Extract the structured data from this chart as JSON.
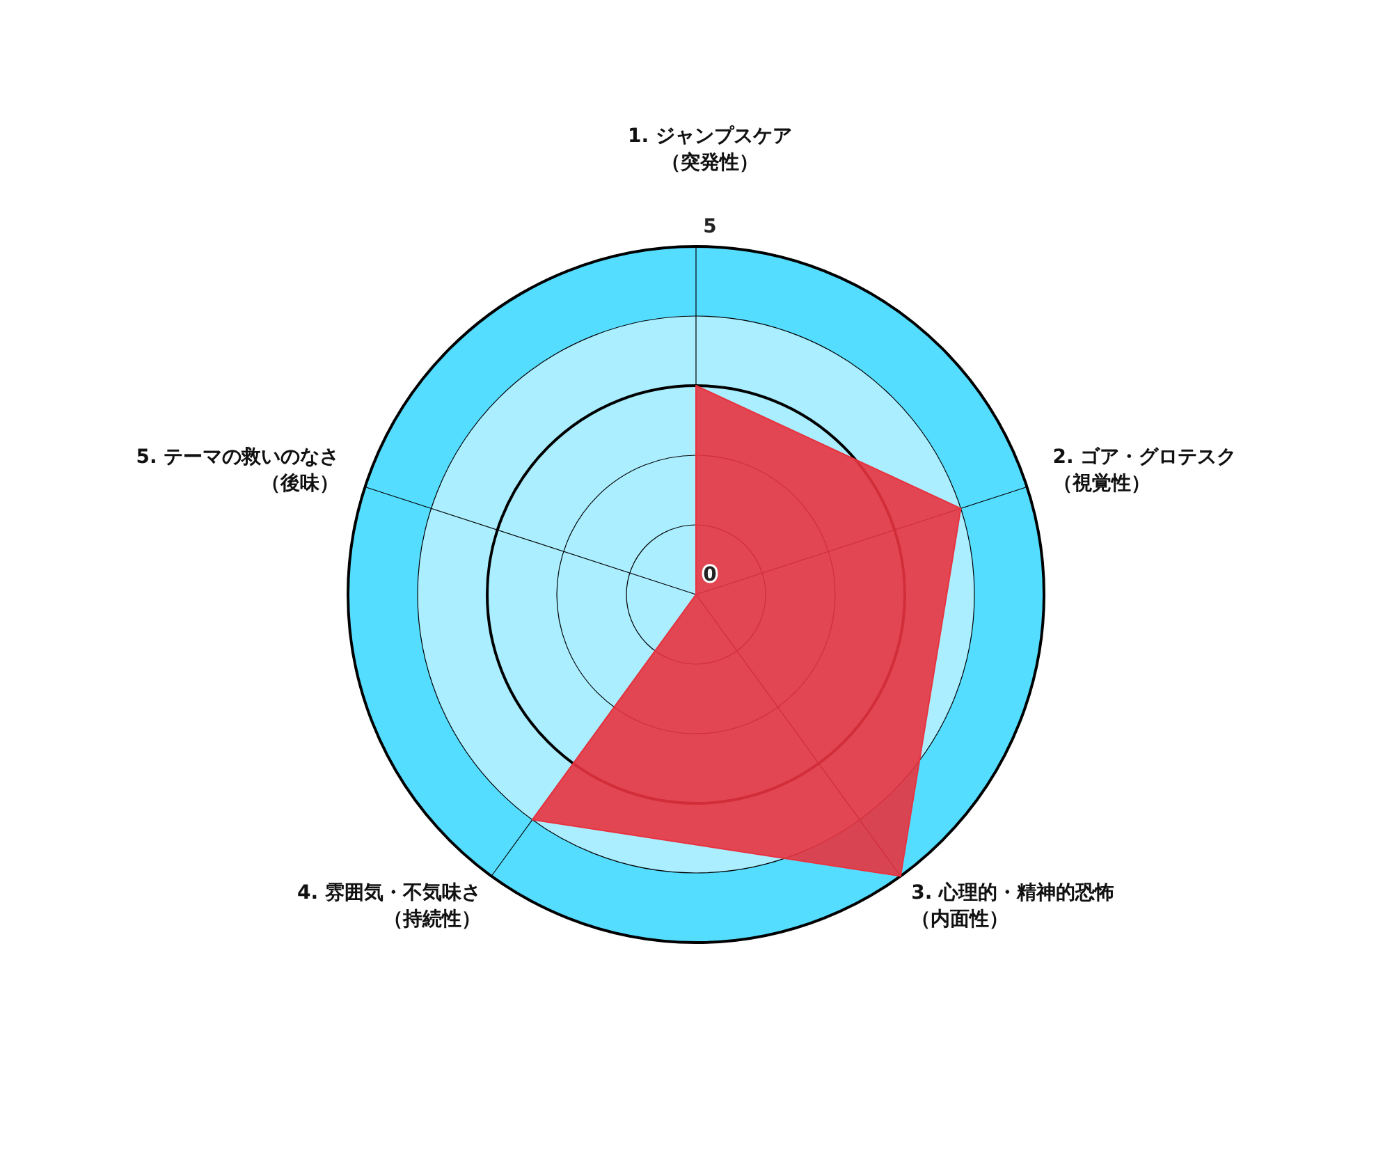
{
  "chart_data": {
    "type": "radar",
    "categories": [
      "1. ジャンプスケア（突発性）",
      "2. ゴア・グロテスク（視覚性）",
      "3. 心理的・精神的恐怖（内面性）",
      "4. 雰囲気・不気味さ（持続性）",
      "5. テーマの救いのなさ（後味）"
    ],
    "series": [
      {
        "color": "#e8333f",
        "values": [
          3,
          4,
          5,
          4,
          0
        ]
      }
    ],
    "ylim": [
      0,
      5
    ],
    "yticks": [
      0,
      5
    ],
    "grid": true
  }
}
